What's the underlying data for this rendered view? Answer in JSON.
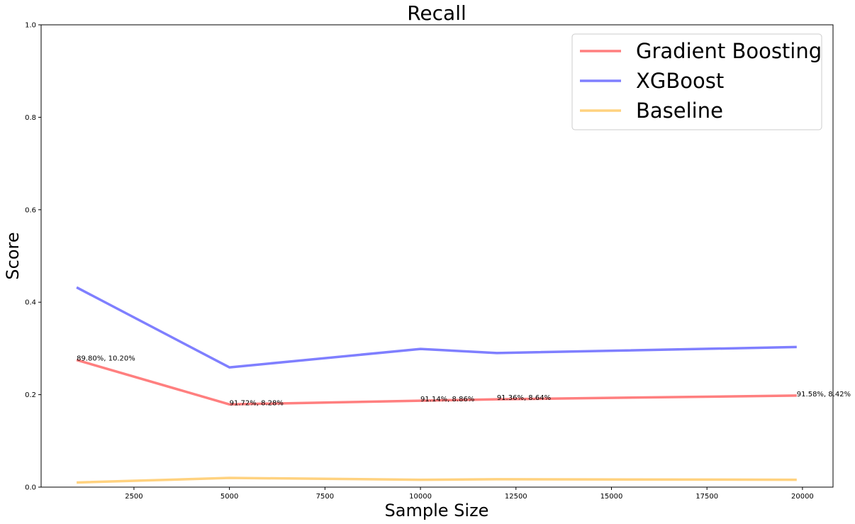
{
  "chart_data": {
    "type": "line",
    "title": "Recall",
    "xlabel": "Sample Size",
    "ylabel": "Score",
    "xlim": [
      70,
      20800
    ],
    "ylim": [
      0,
      1
    ],
    "xticks": [
      2500,
      5000,
      7500,
      10000,
      12500,
      15000,
      17500,
      20000
    ],
    "yticks": [
      0.0,
      0.2,
      0.4,
      0.6,
      0.8,
      1.0
    ],
    "grid": false,
    "legend_position": "top-right",
    "series": [
      {
        "name": "Gradient Boosting",
        "color": "#ff0000",
        "x": [
          1000,
          5000,
          10000,
          12000,
          19850
        ],
        "y": [
          0.275,
          0.179,
          0.187,
          0.19,
          0.198
        ]
      },
      {
        "name": "XGBoost",
        "color": "#0000ff",
        "x": [
          1000,
          5000,
          10000,
          12000,
          19850
        ],
        "y": [
          0.432,
          0.259,
          0.299,
          0.29,
          0.303
        ]
      },
      {
        "name": "Baseline",
        "color": "#ffa500",
        "x": [
          1000,
          5000,
          10000,
          12000,
          19850
        ],
        "y": [
          0.01,
          0.02,
          0.016,
          0.017,
          0.016
        ]
      }
    ],
    "annotations": [
      {
        "text": "89.80%, 10.20%",
        "x": 1000,
        "y": 0.275
      },
      {
        "text": "91.72%, 8.28%",
        "x": 5000,
        "y": 0.179
      },
      {
        "text": "91.14%, 8.86%",
        "x": 10000,
        "y": 0.187
      },
      {
        "text": "91.36%, 8.64%",
        "x": 12000,
        "y": 0.19
      },
      {
        "text": "91.58%, 8.42%",
        "x": 19850,
        "y": 0.198
      }
    ]
  }
}
